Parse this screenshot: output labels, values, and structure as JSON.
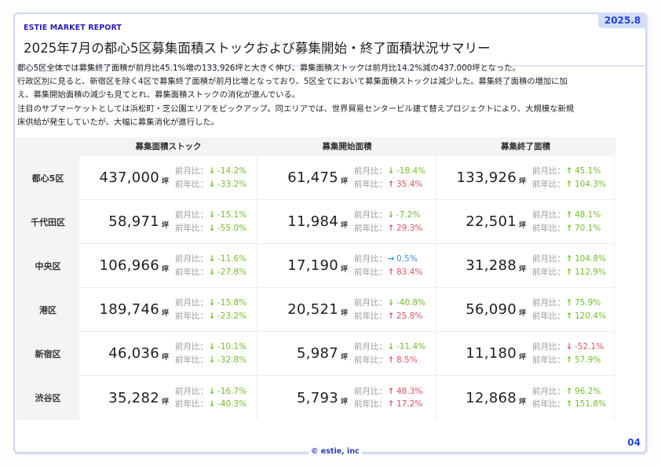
{
  "header": {
    "brand": "ESTIE MARKET REPORT",
    "date": "2025.8",
    "title": "2025年7月の都心5区募集面積ストックおよび募集開始・終了面積状況サマリー"
  },
  "summary": [
    "都心5区全体では募集終了面積が前月比45.1%増の133,926坪と大きく伸び、募集面積ストックは前月比14.2%減の437,000坪となった。",
    "行政区別に見ると、新宿区を除く4区で募集終了面積が前月比増となっており、5区全てにおいて募集面積ストックは減少した。募集終了面積の増加に加",
    "え、募集開始面積の減少も見てとれ、募集面積ストックの消化が進んでいる。",
    "注目のサブマーケットとしては浜松町・芝公園エリアをピックアップ。同エリアでは、世界貿易センタービル建て替えプロジェクトにより、大規模な新規",
    "床供給が発生していたが、大幅に募集消化が進行した。"
  ],
  "table": {
    "columns": [
      "募集面積ストック",
      "募集開始面積",
      "募集終了面積"
    ],
    "unit": "坪",
    "mom_label": "前月比：",
    "yoy_label": "前年比：",
    "arrows": {
      "up": "↑",
      "down": "↓",
      "flat": "→"
    },
    "colors": {
      "green": "#73c02a",
      "red": "#e05462",
      "blue": "#3a92e0"
    },
    "rows": [
      {
        "area": "都心5区",
        "cells": [
          {
            "value": "437,000",
            "mom": "-14.2%",
            "mom_dir": "down",
            "mom_color": "green",
            "yoy": "-33.2%",
            "yoy_dir": "down",
            "yoy_color": "green"
          },
          {
            "value": "61,475",
            "mom": "-18.4%",
            "mom_dir": "down",
            "mom_color": "green",
            "yoy": "35.4%",
            "yoy_dir": "up",
            "yoy_color": "red"
          },
          {
            "value": "133,926",
            "mom": "45.1%",
            "mom_dir": "up",
            "mom_color": "green",
            "yoy": "104.3%",
            "yoy_dir": "up",
            "yoy_color": "green"
          }
        ]
      },
      {
        "area": "千代田区",
        "cells": [
          {
            "value": "58,971",
            "mom": "-15.1%",
            "mom_dir": "down",
            "mom_color": "green",
            "yoy": "-55.0%",
            "yoy_dir": "down",
            "yoy_color": "green"
          },
          {
            "value": "11,984",
            "mom": "-7.2%",
            "mom_dir": "down",
            "mom_color": "green",
            "yoy": "29.3%",
            "yoy_dir": "up",
            "yoy_color": "red"
          },
          {
            "value": "22,501",
            "mom": "48.1%",
            "mom_dir": "up",
            "mom_color": "green",
            "yoy": "70.1%",
            "yoy_dir": "up",
            "yoy_color": "green"
          }
        ]
      },
      {
        "area": "中央区",
        "cells": [
          {
            "value": "106,966",
            "mom": "-11.6%",
            "mom_dir": "down",
            "mom_color": "green",
            "yoy": "-27.8%",
            "yoy_dir": "down",
            "yoy_color": "green"
          },
          {
            "value": "17,190",
            "mom": "0.5%",
            "mom_dir": "flat",
            "mom_color": "blue",
            "yoy": "83.4%",
            "yoy_dir": "up",
            "yoy_color": "red"
          },
          {
            "value": "31,288",
            "mom": "104.8%",
            "mom_dir": "up",
            "mom_color": "green",
            "yoy": "112.9%",
            "yoy_dir": "up",
            "yoy_color": "green"
          }
        ]
      },
      {
        "area": "港区",
        "cells": [
          {
            "value": "189,746",
            "mom": "-15.8%",
            "mom_dir": "down",
            "mom_color": "green",
            "yoy": "-23.2%",
            "yoy_dir": "down",
            "yoy_color": "green"
          },
          {
            "value": "20,521",
            "mom": "-40.8%",
            "mom_dir": "down",
            "mom_color": "green",
            "yoy": "25.8%",
            "yoy_dir": "up",
            "yoy_color": "red"
          },
          {
            "value": "56,090",
            "mom": "75.9%",
            "mom_dir": "up",
            "mom_color": "green",
            "yoy": "120.4%",
            "yoy_dir": "up",
            "yoy_color": "green"
          }
        ]
      },
      {
        "area": "新宿区",
        "cells": [
          {
            "value": "46,036",
            "mom": "-10.1%",
            "mom_dir": "down",
            "mom_color": "green",
            "yoy": "-32.8%",
            "yoy_dir": "down",
            "yoy_color": "green"
          },
          {
            "value": "5,987",
            "mom": "-11.4%",
            "mom_dir": "down",
            "mom_color": "green",
            "yoy": "8.5%",
            "yoy_dir": "up",
            "yoy_color": "red"
          },
          {
            "value": "11,180",
            "mom": "-52.1%",
            "mom_dir": "down",
            "mom_color": "red",
            "yoy": "57.9%",
            "yoy_dir": "up",
            "yoy_color": "green"
          }
        ]
      },
      {
        "area": "渋谷区",
        "cells": [
          {
            "value": "35,282",
            "mom": "-16.7%",
            "mom_dir": "down",
            "mom_color": "green",
            "yoy": "-40.3%",
            "yoy_dir": "down",
            "yoy_color": "green"
          },
          {
            "value": "5,793",
            "mom": "48.3%",
            "mom_dir": "up",
            "mom_color": "red",
            "yoy": "17.2%",
            "yoy_dir": "up",
            "yoy_color": "red"
          },
          {
            "value": "12,868",
            "mom": "96.2%",
            "mom_dir": "up",
            "mom_color": "green",
            "yoy": "151.8%",
            "yoy_dir": "up",
            "yoy_color": "green"
          }
        ]
      }
    ]
  },
  "footer": {
    "copyright": "© estie, inc",
    "page_number": "04"
  }
}
